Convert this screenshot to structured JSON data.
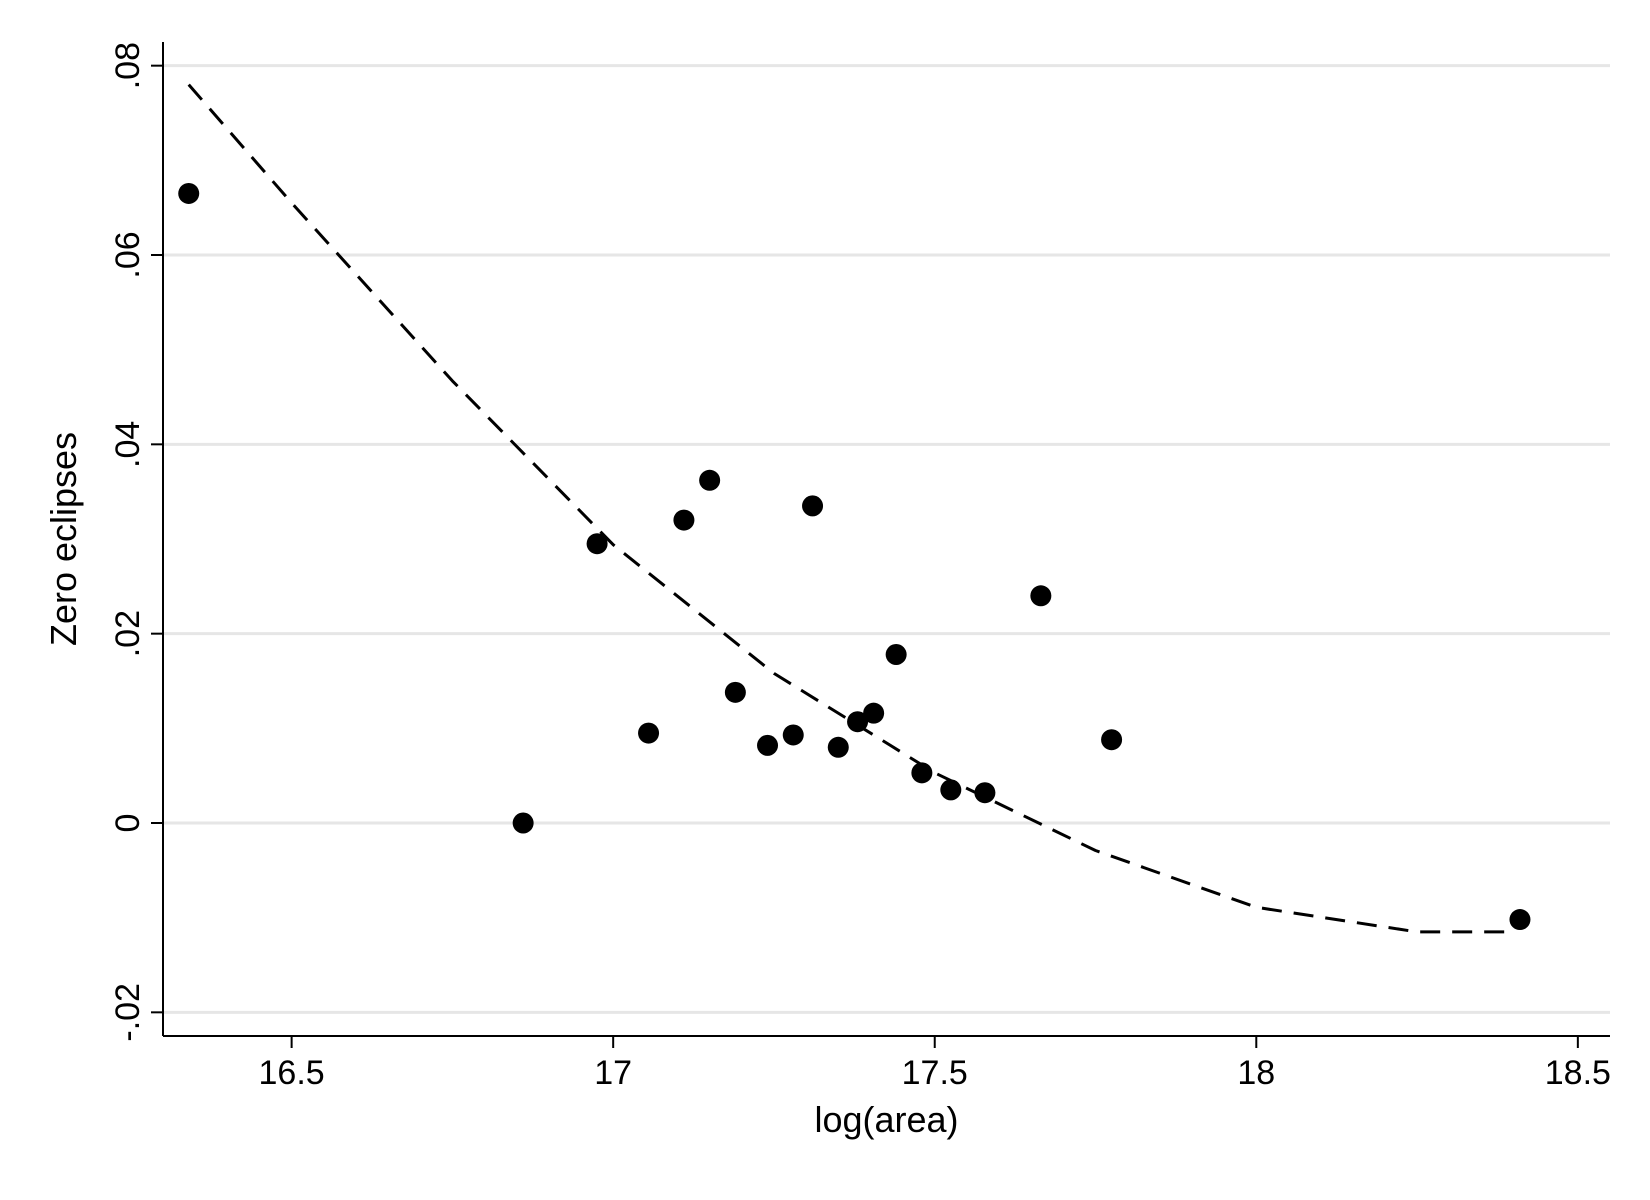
{
  "chart_data": {
    "type": "scatter",
    "title": "",
    "xlabel": "log(area)",
    "ylabel": "Zero eclipses",
    "xlim": [
      16.3,
      18.55
    ],
    "ylim": [
      -0.0225,
      0.0825
    ],
    "x_ticks": [
      16.5,
      17,
      17.5,
      18,
      18.5
    ],
    "x_tick_labels": [
      "16.5",
      "17",
      "17.5",
      "18",
      "18.5"
    ],
    "y_ticks": [
      -0.02,
      0,
      0.02,
      0.04,
      0.06,
      0.08
    ],
    "y_tick_labels": [
      "-.02",
      "0",
      ".02",
      ".04",
      ".06",
      ".08"
    ],
    "grid": {
      "horizontal": true,
      "vertical": false
    },
    "colors": {
      "points": "#000000",
      "fit_line": "#000000",
      "grid": "#e6e6e6",
      "axis": "#000000"
    },
    "series": [
      {
        "kind": "points",
        "x": [
          16.34,
          16.86,
          16.975,
          17.055,
          17.11,
          17.15,
          17.19,
          17.24,
          17.28,
          17.31,
          17.35,
          17.38,
          17.405,
          17.44,
          17.48,
          17.525,
          17.578,
          17.665,
          17.775,
          18.41
        ],
        "y": [
          0.0665,
          0.0,
          0.0295,
          0.0095,
          0.032,
          0.0362,
          0.0138,
          0.0082,
          0.0093,
          0.0335,
          0.008,
          0.0107,
          0.0116,
          0.0178,
          0.0053,
          0.0035,
          0.0032,
          0.024,
          0.0088,
          -0.0102
        ]
      },
      {
        "kind": "fitted-curve",
        "line_style": "dashed",
        "x": [
          16.34,
          16.5,
          16.75,
          17.0,
          17.25,
          17.5,
          17.75,
          18.0,
          18.25,
          18.4
        ],
        "y": [
          0.078,
          0.0655,
          0.0467,
          0.0294,
          0.0158,
          0.0053,
          -0.0029,
          -0.0089,
          -0.0115,
          -0.0115
        ]
      }
    ]
  }
}
